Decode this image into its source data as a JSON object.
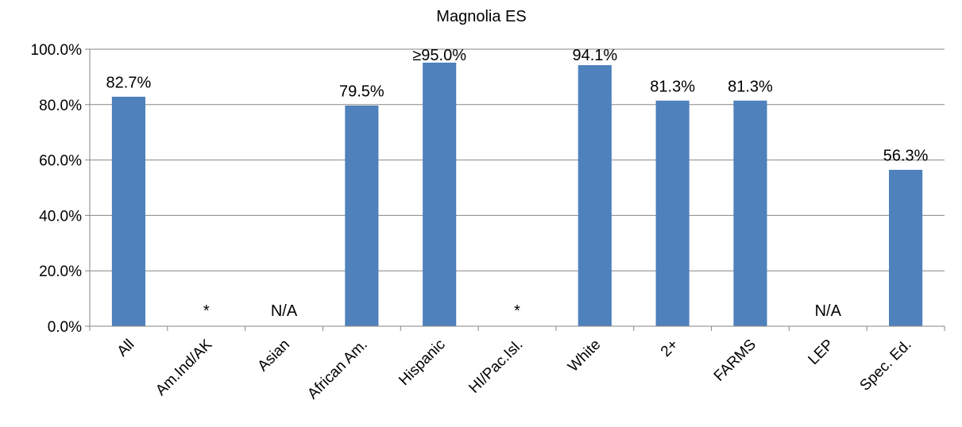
{
  "chart_data": {
    "type": "bar",
    "title": "Magnolia ES",
    "categories": [
      "All",
      "Am.Ind/AK",
      "Asian",
      "African Am.",
      "Hispanic",
      "HI/Pac.Isl.",
      "White",
      "2+",
      "FARMS",
      "LEP",
      "Spec. Ed."
    ],
    "values": [
      82.7,
      null,
      null,
      79.5,
      95.0,
      null,
      94.1,
      81.3,
      81.3,
      null,
      56.3
    ],
    "data_labels": [
      "82.7%",
      "*",
      "N/A",
      "79.5%",
      "≥95.0%",
      "*",
      "94.1%",
      "81.3%",
      "81.3%",
      "N/A",
      "56.3%"
    ],
    "y_ticks": [
      "0.0%",
      "20.0%",
      "40.0%",
      "60.0%",
      "80.0%",
      "100.0%"
    ],
    "y_tick_values": [
      0,
      20,
      40,
      60,
      80,
      100
    ],
    "ylim": [
      0,
      100
    ],
    "xlabel": "",
    "ylabel": "",
    "grid": true,
    "legend": "none",
    "bar_color": "#4F81BD"
  }
}
